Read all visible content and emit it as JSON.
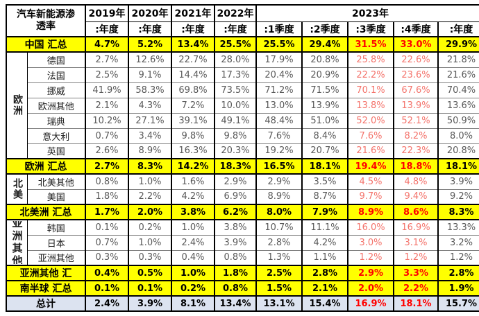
{
  "title": {
    "line1": "汽车新能源渗",
    "line2": "透率"
  },
  "columns": {
    "years": [
      {
        "label": "2019年",
        "sub": ":年度"
      },
      {
        "label": "2020年",
        "sub": ":年度"
      },
      {
        "label": "2021年",
        "sub": ":年度"
      },
      {
        "label": "2022年",
        "sub": ":年度"
      }
    ],
    "year2023": {
      "label": "2023年",
      "subs": [
        ":1季度",
        ":2季度",
        ":3季度",
        ":4季度",
        ":年度"
      ]
    }
  },
  "colors": {
    "summary_row_bg": "#FFFF00",
    "total_row_bg": "#DCE3F0",
    "summary_red_text": "#FF0000",
    "country_red_text": "#F4736B",
    "country_value_text": "#595959",
    "border": "#000000"
  },
  "chart_data": {
    "type": "table",
    "title": "汽车新能源渗透率",
    "column_keys": [
      "2019年:年度",
      "2020年:年度",
      "2021年:年度",
      "2022年:年度",
      "2023年:1季度",
      "2023年:2季度",
      "2023年:3季度",
      "2023年:4季度",
      "2023年:年度"
    ],
    "red_value_columns": [
      6,
      7
    ],
    "rows": [
      {
        "label": "中国 汇总",
        "type": "summary",
        "values": [
          "4.7%",
          "5.2%",
          "13.4%",
          "25.5%",
          "25.5%",
          "29.4%",
          "31.5%",
          "33.0%",
          "29.9%"
        ]
      },
      {
        "label": "德国",
        "type": "country",
        "group": {
          "label": "欧洲",
          "span": 7
        },
        "values": [
          "2.7%",
          "12.6%",
          "22.7%",
          "28.0%",
          "17.9%",
          "20.8%",
          "25.8%",
          "22.6%",
          "21.8%"
        ]
      },
      {
        "label": "法国",
        "type": "country",
        "values": [
          "2.5%",
          "9.1%",
          "14.4%",
          "17.3%",
          "20.4%",
          "20.9%",
          "22.2%",
          "23.6%",
          "21.6%"
        ]
      },
      {
        "label": "挪威",
        "type": "country",
        "values": [
          "41.9%",
          "58.3%",
          "69.8%",
          "73.5%",
          "71.2%",
          "71.5%",
          "70.1%",
          "67.6%",
          "70.4%"
        ]
      },
      {
        "label": "欧洲其他",
        "type": "country",
        "values": [
          "2.1%",
          "4.3%",
          "7.2%",
          "10.0%",
          "13.0%",
          "13.9%",
          "13.8%",
          "13.9%",
          "13.6%"
        ]
      },
      {
        "label": "瑞典",
        "type": "country",
        "values": [
          "10.2%",
          "27.1%",
          "39.1%",
          "49.1%",
          "48.4%",
          "51.0%",
          "52.0%",
          "52.1%",
          "50.9%"
        ]
      },
      {
        "label": "意大利",
        "type": "country",
        "values": [
          "0.7%",
          "3.4%",
          "9.8%",
          "9.8%",
          "7.6%",
          "8.4%",
          "7.6%",
          "8.2%",
          "8.0%"
        ]
      },
      {
        "label": "英国",
        "type": "country",
        "values": [
          "2.6%",
          "8.9%",
          "16.3%",
          "20.3%",
          "19.2%",
          "20.7%",
          "21.6%",
          "22.3%",
          "20.8%"
        ]
      },
      {
        "label": "欧洲 汇总",
        "type": "summary",
        "values": [
          "2.7%",
          "8.3%",
          "14.2%",
          "18.3%",
          "16.5%",
          "18.1%",
          "19.4%",
          "18.8%",
          "18.1%"
        ]
      },
      {
        "label": "北美其他",
        "type": "country",
        "group": {
          "label": "北美",
          "span": 2
        },
        "values": [
          "0.8%",
          "1.0%",
          "1.6%",
          "2.9%",
          "2.9%",
          "3.5%",
          "4.5%",
          "4.8%",
          "3.9%"
        ]
      },
      {
        "label": "美国",
        "type": "country",
        "values": [
          "1.8%",
          "2.2%",
          "4.2%",
          "6.9%",
          "8.9%",
          "8.7%",
          "9.7%",
          "9.4%",
          "9.2%"
        ]
      },
      {
        "label": "北美洲 汇总",
        "type": "summary",
        "values": [
          "1.7%",
          "2.0%",
          "3.8%",
          "6.2%",
          "8.0%",
          "7.9%",
          "8.9%",
          "8.6%",
          "8.3%"
        ]
      },
      {
        "label": "韩国",
        "type": "country",
        "group": {
          "label": "亚洲其他",
          "span": 3,
          "clipped": true
        },
        "values": [
          "0.1%",
          "0.2%",
          "1.0%",
          "3.8%",
          "10.7%",
          "11.1%",
          "16.0%",
          "16.9%",
          "13.3%"
        ]
      },
      {
        "label": "日本",
        "type": "country",
        "values": [
          "0.7%",
          "1.0%",
          "2.4%",
          "3.9%",
          "2.8%",
          "4.2%",
          "3.0%",
          "3.1%",
          "3.2%"
        ]
      },
      {
        "label": "亚洲其他",
        "type": "country",
        "values": [
          "0.3%",
          "0.3%",
          "0.4%",
          "0.8%",
          "1.3%",
          "1.1%",
          "1.2%",
          "1.2%",
          "1.2%"
        ]
      },
      {
        "label": "亚洲其他 汇",
        "type": "summary",
        "values": [
          "0.4%",
          "0.5%",
          "1.0%",
          "1.8%",
          "2.5%",
          "2.8%",
          "2.9%",
          "3.3%",
          "2.8%"
        ]
      },
      {
        "label": "南半球 汇总",
        "type": "summary",
        "values": [
          "0.1%",
          "0.1%",
          "0.2%",
          "0.8%",
          "1.5%",
          "2.1%",
          "2.0%",
          "2.2%",
          "1.9%"
        ]
      },
      {
        "label": "总计",
        "type": "total",
        "values": [
          "2.4%",
          "3.9%",
          "8.1%",
          "13.4%",
          "13.1%",
          "15.4%",
          "16.9%",
          "18.1%",
          "15.7%"
        ]
      }
    ]
  }
}
